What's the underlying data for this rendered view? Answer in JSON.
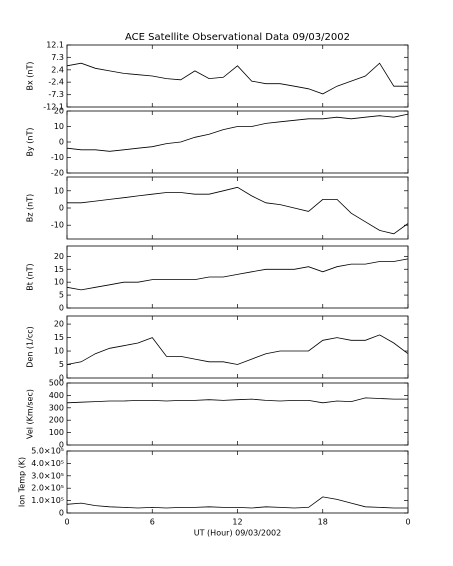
{
  "chart_data": [
    {
      "type": "line",
      "title": "ACE Satellite Observational Data   09/03/2002",
      "ylabel": "Bx (nT)",
      "x": [
        0,
        1,
        2,
        3,
        4,
        5,
        6,
        7,
        8,
        9,
        10,
        11,
        12,
        13,
        14,
        15,
        16,
        17,
        18,
        19,
        20,
        21,
        22,
        23,
        24
      ],
      "values": [
        4,
        5,
        3,
        2,
        1,
        0.5,
        0,
        -1,
        -1.5,
        2,
        -1,
        -0.5,
        4,
        -2,
        -3,
        -3,
        -4,
        -5,
        -7,
        -4,
        -2,
        0,
        5,
        -4,
        -4
      ],
      "color": "#000000",
      "xlim": [
        0,
        24
      ],
      "xticks": [
        0,
        6,
        12,
        18,
        {
          "value": 24,
          "label": "0"
        }
      ],
      "ylim": [
        -12.1,
        12.1
      ],
      "yticks": [
        -12.1,
        -7.3,
        -2.4,
        2.4,
        7.3,
        12.1
      ]
    },
    {
      "type": "line",
      "ylabel": "By (nT)",
      "x": [
        0,
        1,
        2,
        3,
        4,
        5,
        6,
        7,
        8,
        9,
        10,
        11,
        12,
        13,
        14,
        15,
        16,
        17,
        18,
        19,
        20,
        21,
        22,
        23,
        24
      ],
      "values": [
        -4,
        -5,
        -5,
        -6,
        -5,
        -4,
        -3,
        -1,
        0,
        3,
        5,
        8,
        10,
        10,
        12,
        13,
        14,
        15,
        15,
        16,
        15,
        16,
        17,
        16,
        18
      ],
      "color": "#000000",
      "xlim": [
        0,
        24
      ],
      "xticks": [
        0,
        6,
        12,
        18,
        {
          "value": 24,
          "label": "0"
        }
      ],
      "ylim": [
        -20,
        20
      ],
      "yticks": [
        -20,
        -10,
        0,
        10,
        20
      ]
    },
    {
      "type": "line",
      "ylabel": "Bz (nT)",
      "x": [
        0,
        1,
        2,
        3,
        4,
        5,
        6,
        7,
        8,
        9,
        10,
        11,
        12,
        13,
        14,
        15,
        16,
        17,
        18,
        19,
        20,
        21,
        22,
        23,
        24
      ],
      "values": [
        3,
        3,
        4,
        5,
        6,
        7,
        8,
        9,
        9,
        8,
        8,
        10,
        12,
        7,
        3,
        2,
        0,
        -2,
        5,
        5,
        -3,
        -8,
        -13,
        -15,
        -9
      ],
      "color": "#000000",
      "xlim": [
        0,
        24
      ],
      "xticks": [
        0,
        6,
        12,
        18,
        {
          "value": 24,
          "label": "0"
        }
      ],
      "ylim": [
        -18,
        18
      ],
      "yticks": [
        -10,
        0,
        10
      ]
    },
    {
      "type": "line",
      "ylabel": "Bt (nT)",
      "x": [
        0,
        1,
        2,
        3,
        4,
        5,
        6,
        7,
        8,
        9,
        10,
        11,
        12,
        13,
        14,
        15,
        16,
        17,
        18,
        19,
        20,
        21,
        22,
        23,
        24
      ],
      "values": [
        8,
        7,
        8,
        9,
        10,
        10,
        11,
        11,
        11,
        11,
        12,
        12,
        13,
        14,
        15,
        15,
        15,
        16,
        14,
        16,
        17,
        17,
        18,
        18,
        19
      ],
      "color": "#000000",
      "xlim": [
        0,
        24
      ],
      "xticks": [
        0,
        6,
        12,
        18,
        {
          "value": 24,
          "label": "0"
        }
      ],
      "ylim": [
        0,
        24
      ],
      "yticks": [
        0,
        5,
        10,
        15,
        20
      ]
    },
    {
      "type": "line",
      "ylabel": "Den (1/cc)",
      "x": [
        0,
        1,
        2,
        3,
        4,
        5,
        6,
        7,
        8,
        9,
        10,
        11,
        12,
        13,
        14,
        15,
        16,
        17,
        18,
        19,
        20,
        21,
        22,
        23,
        24
      ],
      "values": [
        5,
        6,
        9,
        11,
        12,
        13,
        15,
        8,
        8,
        7,
        6,
        6,
        5,
        7,
        9,
        10,
        10,
        10,
        14,
        15,
        14,
        14,
        16,
        13,
        9
      ],
      "color": "#000000",
      "xlim": [
        0,
        24
      ],
      "xticks": [
        0,
        6,
        12,
        18,
        {
          "value": 24,
          "label": "0"
        }
      ],
      "ylim": [
        0,
        23
      ],
      "yticks": [
        0,
        5,
        10,
        15,
        20
      ]
    },
    {
      "type": "line",
      "ylabel": "Vel (Km/sec)",
      "x": [
        0,
        1,
        2,
        3,
        4,
        5,
        6,
        7,
        8,
        9,
        10,
        11,
        12,
        13,
        14,
        15,
        16,
        17,
        18,
        19,
        20,
        21,
        22,
        23,
        24
      ],
      "values": [
        340,
        345,
        350,
        355,
        355,
        360,
        360,
        355,
        360,
        360,
        365,
        360,
        365,
        370,
        360,
        355,
        360,
        360,
        340,
        355,
        350,
        380,
        375,
        370,
        370
      ],
      "color": "#000000",
      "xlim": [
        0,
        24
      ],
      "xticks": [
        0,
        6,
        12,
        18,
        {
          "value": 24,
          "label": "0"
        }
      ],
      "ylim": [
        0,
        500
      ],
      "yticks": [
        0,
        100,
        200,
        300,
        400,
        500
      ]
    },
    {
      "type": "line",
      "ylabel": "Ion Temp (K)",
      "xlabel": "UT (Hour)  09/03/2002",
      "x": [
        0,
        1,
        2,
        3,
        4,
        5,
        6,
        7,
        8,
        9,
        10,
        11,
        12,
        13,
        14,
        15,
        16,
        17,
        18,
        19,
        20,
        21,
        22,
        23,
        24
      ],
      "values": [
        70000,
        80000,
        60000,
        50000,
        45000,
        40000,
        45000,
        40000,
        45000,
        45000,
        50000,
        45000,
        45000,
        40000,
        50000,
        45000,
        40000,
        45000,
        130000,
        110000,
        80000,
        50000,
        45000,
        40000,
        40000
      ],
      "color": "#000000",
      "xlim": [
        0,
        24
      ],
      "xticks": [
        0,
        6,
        12,
        18,
        {
          "value": 24,
          "label": "0"
        }
      ],
      "ylim": [
        0,
        500000
      ],
      "yticks": [
        0,
        {
          "value": 100000,
          "label": "1.0×10⁵"
        },
        {
          "value": 200000,
          "label": "2.0×10⁵"
        },
        {
          "value": 300000,
          "label": "3.0×10⁵"
        },
        {
          "value": 400000,
          "label": "4.0×10⁵"
        },
        {
          "value": 500000,
          "label": "5.0×10⁵"
        }
      ]
    }
  ]
}
